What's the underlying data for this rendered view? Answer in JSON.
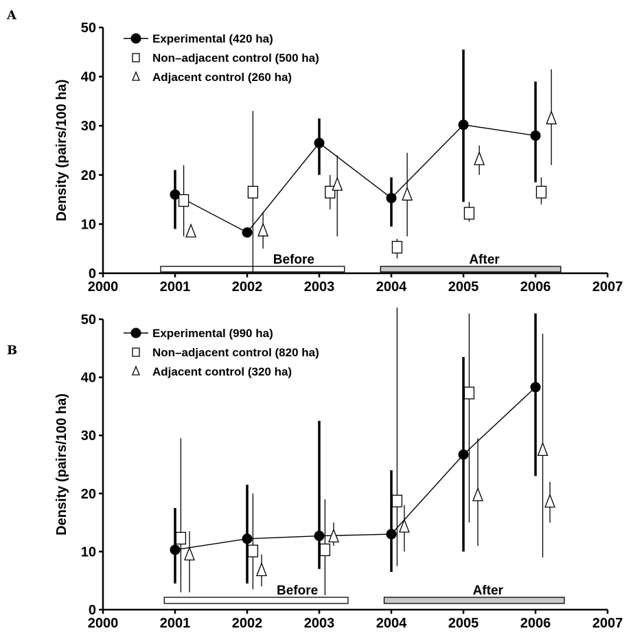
{
  "chart_data": [
    {
      "panel": "A",
      "type": "scatter",
      "ylabel": "Density (pairs/100 ha)",
      "xlim": [
        2000,
        2007
      ],
      "ylim": [
        0,
        50
      ],
      "xticks": [
        "2000",
        "2001",
        "2002",
        "2003",
        "2004",
        "2005",
        "2006",
        "2007"
      ],
      "yticks": [
        "0",
        "10",
        "20",
        "30",
        "40",
        "50"
      ],
      "periods": [
        {
          "label": "Before",
          "from": 2000.8,
          "to": 2003.35,
          "fill": "#ffffff"
        },
        {
          "label": "After",
          "from": 2003.85,
          "to": 2006.35,
          "fill": "#c8c8c8"
        }
      ],
      "series": [
        {
          "name": "Experimental (420 ha)",
          "marker": "circle-filled",
          "connected": true,
          "points": [
            {
              "x": 2001,
              "y": 16,
              "lo": 9,
              "hi": 21
            },
            {
              "x": 2002,
              "y": 8.3,
              "lo": 8.3,
              "hi": 8.3
            },
            {
              "x": 2003,
              "y": 26.5,
              "lo": 20,
              "hi": 31.5
            },
            {
              "x": 2004,
              "y": 15.3,
              "lo": 9.5,
              "hi": 19.5
            },
            {
              "x": 2005,
              "y": 30.2,
              "lo": 14.5,
              "hi": 45.5
            },
            {
              "x": 2006,
              "y": 28,
              "lo": 18.5,
              "hi": 39
            }
          ]
        },
        {
          "name": "Non–adjacent control (500 ha)",
          "marker": "square-open",
          "connected": false,
          "points": [
            {
              "x": 2001.12,
              "y": 14.8,
              "lo": 7.5,
              "hi": 22
            },
            {
              "x": 2002.08,
              "y": 16.5,
              "lo": 0,
              "hi": 33
            },
            {
              "x": 2003.15,
              "y": 16.5,
              "lo": 13,
              "hi": 20
            },
            {
              "x": 2004.08,
              "y": 5.3,
              "lo": 3,
              "hi": 7
            },
            {
              "x": 2005.08,
              "y": 12.2,
              "lo": 10.5,
              "hi": 14.5
            },
            {
              "x": 2006.08,
              "y": 16.5,
              "lo": 14,
              "hi": 19.5
            }
          ]
        },
        {
          "name": "Adjacent control (260 ha)",
          "marker": "triangle-open",
          "connected": false,
          "points": [
            {
              "x": 2001.22,
              "y": 8.5,
              "lo": 8.5,
              "hi": 8.5
            },
            {
              "x": 2002.22,
              "y": 8.7,
              "lo": 5,
              "hi": 12.5
            },
            {
              "x": 2003.25,
              "y": 18,
              "lo": 7.5,
              "hi": 24
            },
            {
              "x": 2004.22,
              "y": 16,
              "lo": 7.5,
              "hi": 24.5
            },
            {
              "x": 2005.22,
              "y": 23.2,
              "lo": 20,
              "hi": 26
            },
            {
              "x": 2006.22,
              "y": 31.5,
              "lo": 22,
              "hi": 41.5
            }
          ]
        }
      ]
    },
    {
      "panel": "B",
      "type": "scatter",
      "ylabel": "Density (pairs/100 ha)",
      "xlim": [
        2000,
        2007
      ],
      "ylim": [
        0,
        50
      ],
      "xticks": [
        "2000",
        "2001",
        "2002",
        "2003",
        "2004",
        "2005",
        "2006",
        "2007"
      ],
      "yticks": [
        "0",
        "10",
        "20",
        "30",
        "40",
        "50"
      ],
      "periods": [
        {
          "label": "Before",
          "from": 2000.85,
          "to": 2003.4,
          "fill": "#ffffff"
        },
        {
          "label": "After",
          "from": 2003.9,
          "to": 2006.4,
          "fill": "#c8c8c8"
        }
      ],
      "series": [
        {
          "name": "Experimental (990 ha)",
          "marker": "circle-filled",
          "connected": true,
          "points": [
            {
              "x": 2001,
              "y": 10.3,
              "lo": 4.5,
              "hi": 17.5
            },
            {
              "x": 2002,
              "y": 12.2,
              "lo": 4.5,
              "hi": 21.5
            },
            {
              "x": 2003,
              "y": 12.7,
              "lo": 7,
              "hi": 32.5
            },
            {
              "x": 2004,
              "y": 13,
              "lo": 6.5,
              "hi": 24
            },
            {
              "x": 2005,
              "y": 26.7,
              "lo": 10,
              "hi": 43.5
            },
            {
              "x": 2006,
              "y": 38.3,
              "lo": 23,
              "hi": 51
            }
          ]
        },
        {
          "name": "Non–adjacent control (820 ha)",
          "marker": "square-open",
          "connected": false,
          "points": [
            {
              "x": 2001.08,
              "y": 12.3,
              "lo": 3,
              "hi": 29.5
            },
            {
              "x": 2002.08,
              "y": 10.1,
              "lo": 3.5,
              "hi": 20
            },
            {
              "x": 2003.08,
              "y": 10.3,
              "lo": 2.5,
              "hi": 19
            },
            {
              "x": 2004.08,
              "y": 18.7,
              "lo": 7.5,
              "hi": 52
            },
            {
              "x": 2005.08,
              "y": 37.3,
              "lo": 15,
              "hi": 51
            }
          ]
        },
        {
          "name": "Adjacent control (320 ha)",
          "marker": "triangle-open",
          "connected": false,
          "points": [
            {
              "x": 2001.2,
              "y": 9.5,
              "lo": 3,
              "hi": 13.5
            },
            {
              "x": 2002.2,
              "y": 6.8,
              "lo": 4,
              "hi": 9.5
            },
            {
              "x": 2003.2,
              "y": 12.6,
              "lo": 11,
              "hi": 15
            },
            {
              "x": 2004.18,
              "y": 14.3,
              "lo": 10,
              "hi": 18
            },
            {
              "x": 2005.2,
              "y": 19.7,
              "lo": 11,
              "hi": 29.5
            },
            {
              "x": 2006.1,
              "y": 27.5,
              "lo": 9,
              "hi": 47.5
            },
            {
              "x": 2006.2,
              "y": 18.6,
              "lo": 15,
              "hi": 22
            }
          ]
        }
      ]
    }
  ]
}
